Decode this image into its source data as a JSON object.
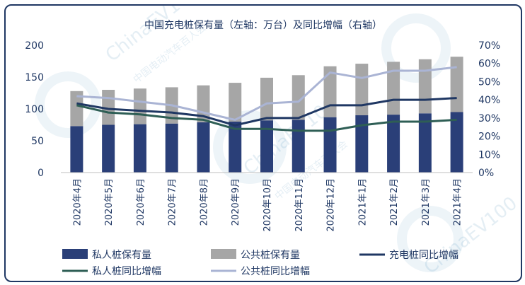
{
  "chart_data": {
    "type": "bar",
    "title": "中国充电桩保有量（左轴：万台）及同比增幅（右轴）",
    "categories": [
      "2020年4月",
      "2020年5月",
      "2020年6月",
      "2020年7月",
      "2020年8月",
      "2020年9月",
      "2020年10月",
      "2020年11月",
      "2020年12月",
      "2021年1月",
      "2021年2月",
      "2021年3月",
      "2021年4月"
    ],
    "stacked": true,
    "bar_series": [
      {
        "name": "私人桩保有量",
        "color": "#2a3f78",
        "values": [
          73,
          75,
          76,
          77,
          79,
          80,
          82,
          83,
          87,
          90,
          91,
          93,
          95
        ]
      },
      {
        "name": "公共桩保有量",
        "color": "#a6a6a6",
        "values": [
          55,
          55,
          56,
          57,
          58,
          61,
          67,
          70,
          80,
          81,
          83,
          85,
          87
        ]
      }
    ],
    "line_series": [
      {
        "name": "充电桩同比增幅",
        "color": "#1f3763",
        "values": [
          38,
          35,
          34,
          33,
          31,
          26,
          30,
          30,
          37,
          37,
          40,
          40,
          41
        ]
      },
      {
        "name": "私人桩同比增幅",
        "color": "#2e5e55",
        "values": [
          37,
          33,
          32,
          30,
          29,
          24,
          24,
          23,
          23,
          26,
          28,
          28,
          29
        ]
      },
      {
        "name": "公共桩同比增幅",
        "color": "#aab4d4",
        "values": [
          42,
          41,
          39,
          37,
          33,
          29,
          38,
          39,
          55,
          52,
          56,
          56,
          58
        ]
      }
    ],
    "y_left": {
      "ticks": [
        "0",
        "50",
        "100",
        "150",
        "200"
      ],
      "ylim": [
        0,
        200
      ]
    },
    "y_right": {
      "ticks": [
        "0%",
        "10%",
        "20%",
        "30%",
        "40%",
        "50%",
        "60%",
        "70%"
      ],
      "ylim": [
        0,
        70
      ]
    },
    "grid": false,
    "legend_position": "bottom"
  },
  "watermark": {
    "brand": "ChinaEV100",
    "org": "中国电动汽车百人会"
  }
}
